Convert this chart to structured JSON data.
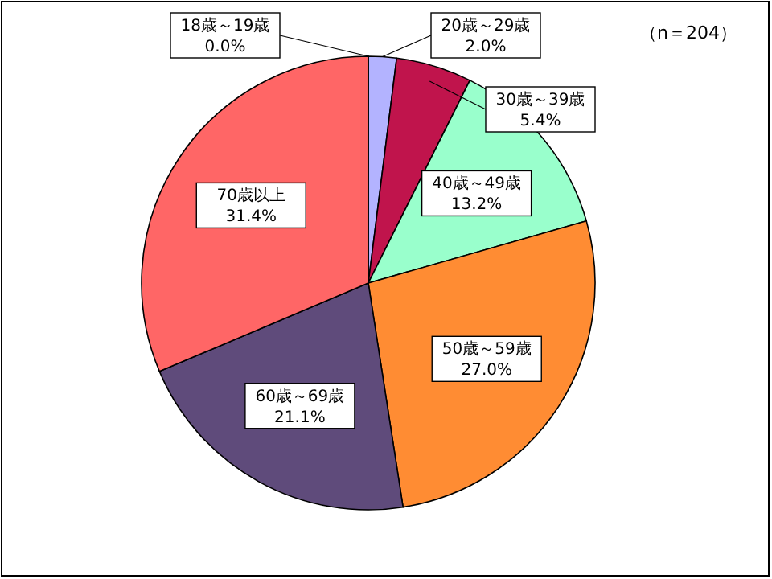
{
  "chart_data": {
    "type": "pie",
    "categories": [
      "18歳～19歳",
      "20歳～29歳",
      "30歳～39歳",
      "40歳～49歳",
      "50歳～59歳",
      "60歳～69歳",
      "70歳以上"
    ],
    "values": [
      0.0,
      2.0,
      5.4,
      13.2,
      27.0,
      21.1,
      31.4
    ],
    "value_labels": [
      "0.0%",
      "2.0%",
      "5.4%",
      "13.2%",
      "27.0%",
      "21.1%",
      "31.4%"
    ],
    "colors": [
      "#9999ff",
      "#b3b3ff",
      "#c0144c",
      "#99ffcc",
      "#ff8c33",
      "#5f4b7b",
      "#ff6666"
    ],
    "annotations": [
      "（n＝204）"
    ]
  }
}
